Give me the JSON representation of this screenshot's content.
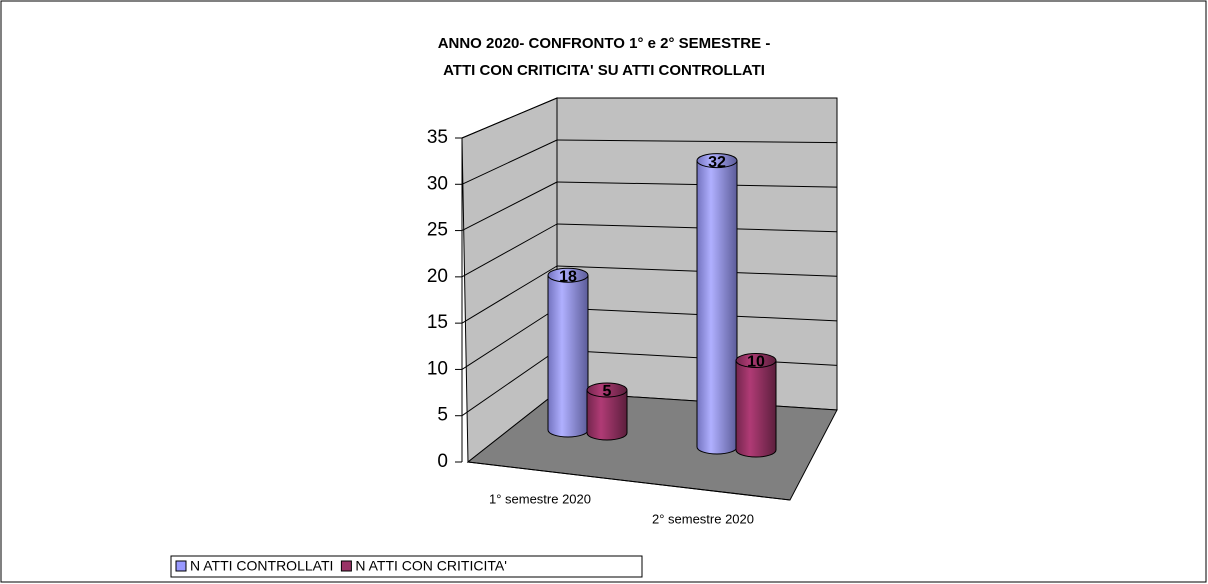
{
  "chart_data": {
    "type": "cylinder-bar",
    "title": [
      "ANNO 2020- CONFRONTO 1° e 2° SEMESTRE -",
      "ATTI CON CRITICITA' SU ATTI CONTROLLATI"
    ],
    "categories": [
      "1° semestre 2020",
      "2° semestre 2020"
    ],
    "series": [
      {
        "name": "N ATTI CONTROLLATI",
        "color": "#9999ff",
        "values": [
          18,
          32
        ]
      },
      {
        "name": "N ATTI CON CRITICITA'",
        "color": "#993366",
        "values": [
          5,
          10
        ]
      }
    ],
    "ylim": [
      0,
      35
    ],
    "yticks": [
      0,
      5,
      10,
      15,
      20,
      25,
      30,
      35
    ],
    "grid": true,
    "legend": "bottom-left"
  }
}
